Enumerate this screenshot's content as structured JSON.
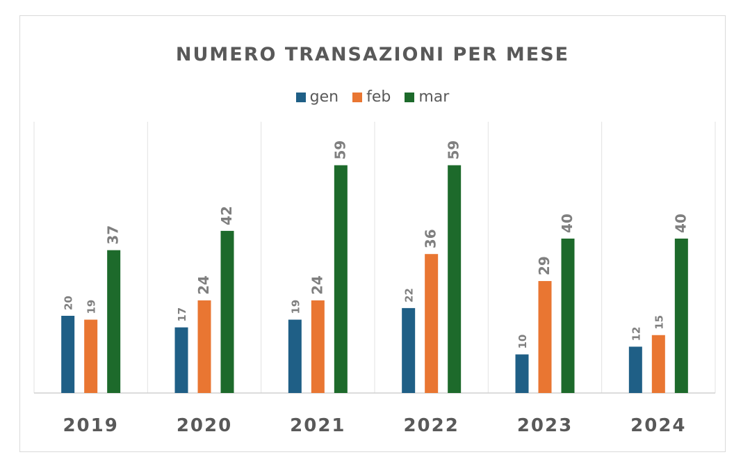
{
  "chart_data": {
    "type": "bar",
    "title": "NUMERO TRANSAZIONI PER MESE",
    "xlabel": "",
    "ylabel": "",
    "categories": [
      "2019",
      "2020",
      "2021",
      "2022",
      "2023",
      "2024"
    ],
    "series": [
      {
        "name": "gen",
        "color": "#1f5f86",
        "values": [
          20,
          17,
          19,
          22,
          10,
          12
        ]
      },
      {
        "name": "feb",
        "color": "#e97632",
        "values": [
          19,
          24,
          24,
          36,
          29,
          15
        ]
      },
      {
        "name": "mar",
        "color": "#1d6a2b",
        "values": [
          37,
          42,
          59,
          59,
          40,
          40
        ]
      }
    ],
    "ylim": [
      0,
      70
    ],
    "legend_position": "top",
    "grid": false
  }
}
